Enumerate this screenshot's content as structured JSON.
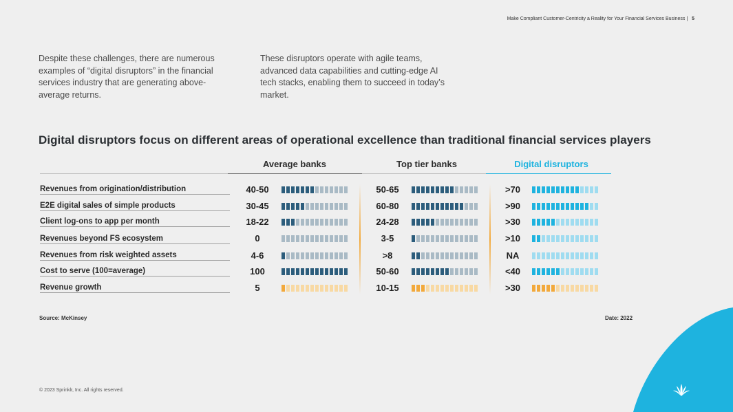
{
  "header": {
    "note": "Make Compliant Customer-Centricity a Reality for Your Financial Services Business",
    "separator": "|",
    "page": "5"
  },
  "intro": {
    "left": "Despite these challenges, there are numerous examples of “digital disruptors” in the financial services industry that are generating above-average returns.",
    "right": "These disruptors operate with agile teams, advanced data capabilities and cutting-edge AI tech stacks, enabling them to succeed in today’s market."
  },
  "heading": "Digital disruptors focus on different areas of operational excellence than traditional financial services players",
  "columns": [
    "Average banks",
    "Top tier banks",
    "Digital disruptors"
  ],
  "colors": {
    "accent": "#1eb3df",
    "dark_bar": "#2c5d7c",
    "light_bar": "#a9bac5",
    "orange": "#f2a93b",
    "light_orange": "#f8d9a3",
    "cyan": "#1eb3df",
    "light_cyan": "#9fdcf0"
  },
  "rows": [
    {
      "label": "Revenues from origination/distribution",
      "avg": "40-50",
      "top": "50-65",
      "dd": ">70"
    },
    {
      "label": "E2E digital sales of simple products",
      "avg": "30-45",
      "top": "60-80",
      "dd": ">90"
    },
    {
      "label": "Client log-ons to app per month",
      "avg": "18-22",
      "top": "24-28",
      "dd": ">30"
    },
    {
      "label": "Revenues beyond FS ecosystem",
      "avg": "0",
      "top": "3-5",
      "dd": ">10"
    },
    {
      "label": "Revenues from risk weighted assets",
      "avg": "4-6",
      "top": ">8",
      "dd": "NA"
    },
    {
      "label": "Cost to serve (100=average)",
      "avg": "100",
      "top": "50-60",
      "dd": "<40"
    },
    {
      "label": "Revenue growth",
      "avg": "5",
      "top": "10-15",
      "dd": ">30"
    }
  ],
  "bar_levels": {
    "avg": [
      7,
      5,
      3,
      0,
      1,
      14,
      1
    ],
    "top": [
      9,
      11,
      5,
      1,
      2,
      8,
      3
    ],
    "dd": [
      10,
      12,
      5,
      2,
      0,
      6,
      5
    ],
    "total_segments": 14
  },
  "footer": {
    "source": "Source: McKinsey",
    "date": "Date: 2022",
    "copyright": "© 2023 Sprinklr, Inc. All rights reserved."
  }
}
